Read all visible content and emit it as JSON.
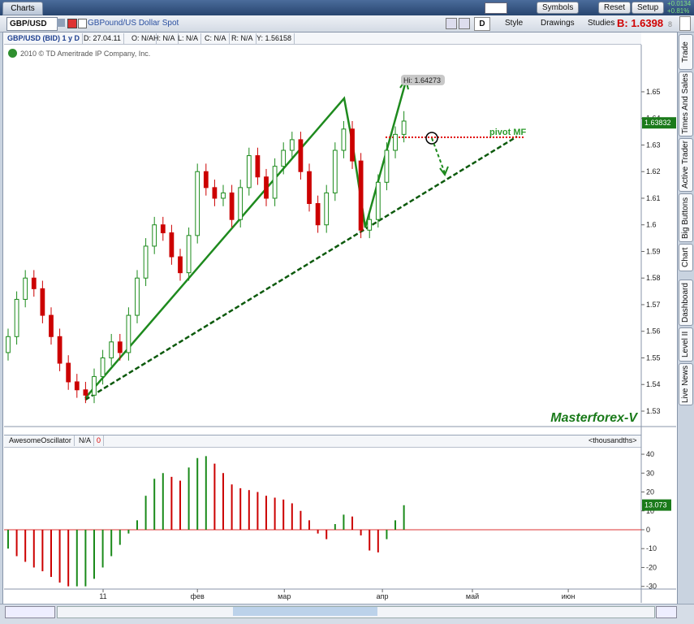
{
  "app": {
    "tab": "Charts",
    "buttons": [
      "Symbols",
      "Reset",
      "Setup"
    ],
    "change": "+0.0134",
    "change_pct": "+0.81%"
  },
  "toolbar": {
    "symbol": "GBP/USD",
    "description": "GBPound/US Dollar Spot",
    "period": "D",
    "style": "Style",
    "drawings": "Drawings",
    "studies": "Studies",
    "bid": "B: 1.6398",
    "bid_pip": "8"
  },
  "header": {
    "cells": [
      "GBP/USD (BID) 1 y D",
      "D: 27.04.11",
      "O: N/A",
      "H: N/A",
      "L: N/A",
      "C: N/A",
      "R: N/A",
      "Y: 1.56158"
    ],
    "copyright": "2010 © TD Ameritrade IP Company, Inc."
  },
  "side_tabs": [
    "Trade",
    "Times And Sales",
    "Active Trader",
    "Big Buttons",
    "Chart",
    "Dashboard",
    "Level II",
    "Live News"
  ],
  "chart_data": [
    {
      "type": "candlestick",
      "up_color": "#1a8a1a",
      "down_color": "#cc0000",
      "x": [
        0,
        1,
        2,
        3,
        4,
        5,
        6,
        7,
        8,
        9,
        10,
        11,
        12,
        13,
        14,
        15,
        16,
        17,
        18,
        19,
        20,
        21,
        22,
        23,
        24,
        25,
        26,
        27,
        28,
        29,
        30,
        31,
        32,
        33,
        34,
        35,
        36,
        37,
        38,
        39,
        40,
        41,
        42,
        43,
        44,
        45,
        46
      ],
      "open": [
        1.552,
        1.558,
        1.572,
        1.58,
        1.576,
        1.566,
        1.558,
        1.548,
        1.541,
        1.538,
        1.536,
        1.543,
        1.55,
        1.556,
        1.552,
        1.566,
        1.58,
        1.592,
        1.6,
        1.597,
        1.588,
        1.582,
        1.596,
        1.62,
        1.614,
        1.61,
        1.612,
        1.602,
        1.614,
        1.626,
        1.618,
        1.61,
        1.622,
        1.628,
        1.632,
        1.62,
        1.608,
        1.6,
        1.612,
        1.628,
        1.636,
        1.624,
        1.598,
        1.602,
        1.616,
        1.628,
        1.634
      ],
      "high": [
        1.561,
        1.575,
        1.583,
        1.583,
        1.579,
        1.569,
        1.561,
        1.551,
        1.544,
        1.541,
        1.546,
        1.553,
        1.559,
        1.559,
        1.569,
        1.583,
        1.595,
        1.603,
        1.603,
        1.6,
        1.591,
        1.599,
        1.623,
        1.623,
        1.617,
        1.615,
        1.615,
        1.617,
        1.629,
        1.629,
        1.621,
        1.625,
        1.631,
        1.635,
        1.635,
        1.623,
        1.611,
        1.615,
        1.631,
        1.639,
        1.639,
        1.627,
        1.605,
        1.619,
        1.631,
        1.637,
        1.64273
      ],
      "low": [
        1.549,
        1.555,
        1.569,
        1.573,
        1.563,
        1.555,
        1.545,
        1.538,
        1.535,
        1.533,
        1.533,
        1.54,
        1.547,
        1.549,
        1.549,
        1.563,
        1.577,
        1.589,
        1.594,
        1.585,
        1.579,
        1.579,
        1.593,
        1.611,
        1.607,
        1.607,
        1.599,
        1.599,
        1.611,
        1.615,
        1.607,
        1.607,
        1.619,
        1.625,
        1.617,
        1.605,
        1.597,
        1.597,
        1.609,
        1.625,
        1.621,
        1.595,
        1.595,
        1.599,
        1.613,
        1.625,
        1.631
      ],
      "close": [
        1.558,
        1.572,
        1.58,
        1.576,
        1.566,
        1.558,
        1.548,
        1.541,
        1.538,
        1.536,
        1.543,
        1.55,
        1.556,
        1.552,
        1.566,
        1.58,
        1.592,
        1.6,
        1.597,
        1.588,
        1.582,
        1.596,
        1.62,
        1.614,
        1.61,
        1.612,
        1.602,
        1.614,
        1.626,
        1.618,
        1.61,
        1.622,
        1.628,
        1.632,
        1.62,
        1.608,
        1.6,
        1.612,
        1.628,
        1.636,
        1.624,
        1.598,
        1.602,
        1.616,
        1.628,
        1.634,
        1.639
      ],
      "xlim": [
        -0.47,
        73.58
      ],
      "ylim": [
        1.5245,
        1.6677
      ],
      "yticks": [
        1.53,
        1.54,
        1.55,
        1.56,
        1.57,
        1.58,
        1.59,
        1.6,
        1.61,
        1.62,
        1.63,
        1.64,
        1.65
      ],
      "last_price": 1.63832,
      "annotations": {
        "high": "Hi: 1.64273",
        "pivot": "pivot MF",
        "watermark": "Masterforex-V"
      }
    },
    {
      "type": "bar",
      "study": "AwesomeOscillator",
      "value_text": "N/A",
      "param": "0",
      "units": "<thousandths>",
      "up_color": "#1a8a1a",
      "down_color": "#cc0000",
      "values": [
        -10,
        -14,
        -17,
        -20,
        -22,
        -25,
        -28,
        -30,
        -30,
        -30,
        -26,
        -20,
        -14,
        -8,
        -2,
        5,
        18,
        27,
        30,
        28,
        26,
        33,
        38,
        39,
        35,
        30,
        24,
        22,
        21,
        20,
        18,
        17,
        16,
        14,
        10,
        5,
        -2,
        -5,
        3,
        8,
        7,
        -3,
        -11,
        -12,
        -5,
        5,
        13
      ],
      "last_value": 13.073,
      "xlim": [
        -0.47,
        73.58
      ],
      "xticks": [
        {
          "value": 11.04,
          "label": "11"
        },
        {
          "value": 22,
          "label": "фев"
        },
        {
          "value": 32.1,
          "label": "мар"
        },
        {
          "value": 43.5,
          "label": "апр"
        },
        {
          "value": 53.96,
          "label": "май"
        },
        {
          "value": 65.1,
          "label": "июн"
        }
      ],
      "ylim": [
        -31,
        43.9
      ],
      "yticks": [
        -30,
        -20,
        -10,
        0,
        10,
        20,
        30,
        40
      ]
    }
  ]
}
